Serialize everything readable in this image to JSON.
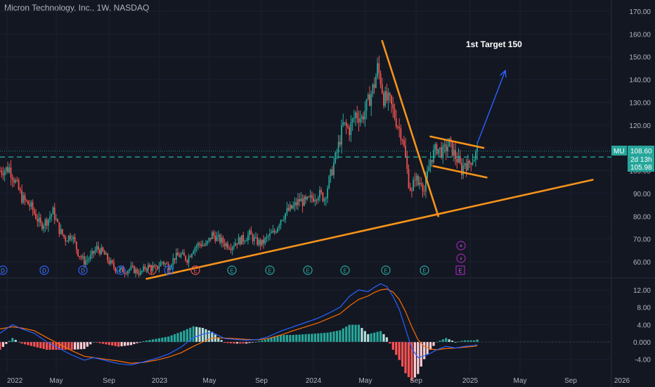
{
  "header": {
    "title": "Micron Technology, Inc., 1W, NASDAQ"
  },
  "annotation": {
    "target_text": "1st Target 150"
  },
  "price_badges": {
    "symbol": "MU",
    "last_price": "108.60",
    "countdown": "2d 13h",
    "level_price": "105.98"
  },
  "event_markers": {
    "dividend": "D",
    "earnings": "E",
    "lightning": "⚡",
    "plus": "+"
  },
  "colors": {
    "background": "#131722",
    "up": "#26a69a",
    "down": "#ef5350",
    "trendline": "#f7931a",
    "arrow": "#2962ff",
    "dashed_level": "#26a69a",
    "macd_line": "#2962ff",
    "signal_line": "#ff6d00"
  },
  "chart_data": [
    {
      "type": "candlestick",
      "title": "Micron Technology, Inc., 1W, NASDAQ",
      "ylim": [
        52,
        172
      ],
      "y_ticks": [
        "60.00",
        "70.00",
        "80.00",
        "90.00",
        "100.00",
        "110.00",
        "120.00",
        "130.00",
        "140.00",
        "150.00",
        "160.00",
        "170.00"
      ],
      "x_ticks": [
        "2022",
        "May",
        "Sep",
        "2023",
        "May",
        "Sep",
        "2024",
        "May",
        "Sep",
        "2025",
        "May",
        "Sep",
        "2026"
      ],
      "price_path": [
        [
          0,
          100
        ],
        [
          6,
          101
        ],
        [
          10,
          95
        ],
        [
          14,
          88
        ],
        [
          20,
          84
        ],
        [
          26,
          76
        ],
        [
          30,
          78
        ],
        [
          34,
          82
        ],
        [
          38,
          74
        ],
        [
          42,
          70
        ],
        [
          46,
          72
        ],
        [
          50,
          64
        ],
        [
          54,
          60
        ],
        [
          58,
          62
        ],
        [
          62,
          66
        ],
        [
          66,
          64
        ],
        [
          70,
          60
        ],
        [
          74,
          57
        ],
        [
          80,
          56
        ],
        [
          84,
          57
        ],
        [
          90,
          55
        ],
        [
          94,
          58
        ],
        [
          100,
          57
        ],
        [
          104,
          60
        ],
        [
          108,
          58
        ],
        [
          112,
          62
        ],
        [
          116,
          63
        ],
        [
          120,
          61
        ],
        [
          124,
          66
        ],
        [
          128,
          68
        ],
        [
          132,
          67
        ],
        [
          136,
          72
        ],
        [
          140,
          70
        ],
        [
          144,
          68
        ],
        [
          148,
          67
        ],
        [
          152,
          69
        ],
        [
          156,
          70
        ],
        [
          160,
          72
        ],
        [
          164,
          69
        ],
        [
          168,
          68
        ],
        [
          172,
          71
        ],
        [
          176,
          73
        ],
        [
          180,
          79
        ],
        [
          184,
          82
        ],
        [
          188,
          84
        ],
        [
          192,
          87
        ],
        [
          196,
          86
        ],
        [
          200,
          88
        ],
        [
          204,
          90
        ],
        [
          208,
          88
        ],
        [
          212,
          98
        ],
        [
          216,
          108
        ],
        [
          220,
          120
        ],
        [
          224,
          118
        ],
        [
          228,
          125
        ],
        [
          232,
          123
        ],
        [
          236,
          130
        ],
        [
          240,
          138
        ],
        [
          242,
          145
        ],
        [
          244,
          140
        ],
        [
          246,
          132
        ],
        [
          250,
          130
        ],
        [
          254,
          122
        ],
        [
          258,
          115
        ],
        [
          260,
          105
        ],
        [
          262,
          95
        ],
        [
          264,
          90
        ],
        [
          266,
          98
        ],
        [
          268,
          94
        ],
        [
          270,
          96
        ],
        [
          272,
          91
        ],
        [
          276,
          105
        ],
        [
          280,
          110
        ],
        [
          284,
          108
        ],
        [
          288,
          112
        ],
        [
          292,
          106
        ],
        [
          294,
          104
        ],
        [
          296,
          100
        ],
        [
          298,
          104
        ],
        [
          300,
          102
        ],
        [
          302,
          105
        ],
        [
          304,
          106
        ],
        [
          306,
          108.6
        ]
      ],
      "trendlines": [
        {
          "from": [
            94,
            52.5
          ],
          "to": [
            380,
            96
          ]
        },
        {
          "from": [
            245,
            157
          ],
          "to": [
            281,
            80
          ]
        },
        {
          "from": [
            276,
            115
          ],
          "to": [
            310,
            110
          ]
        },
        {
          "from": [
            278,
            102
          ],
          "to": [
            312,
            97
          ]
        }
      ],
      "arrow": {
        "from": [
          306,
          112
        ],
        "to": [
          324,
          144
        ]
      },
      "annotation_text": "1st Target 150",
      "annotation_value": 150,
      "last_price": 108.6,
      "horizontal_level": 105.98
    },
    {
      "type": "macd",
      "ylim": [
        -6,
        14
      ],
      "y_ticks": [
        "-4.00",
        "0.000",
        "4.00",
        "8.00",
        "12.00"
      ],
      "macd": [
        [
          0,
          2.0
        ],
        [
          8,
          4.0
        ],
        [
          14,
          3.0
        ],
        [
          22,
          2.0
        ],
        [
          30,
          0.0
        ],
        [
          38,
          -1.5
        ],
        [
          46,
          -3.0
        ],
        [
          54,
          -4.2
        ],
        [
          60,
          -3.6
        ],
        [
          68,
          -4.3
        ],
        [
          76,
          -5.0
        ],
        [
          84,
          -5.3
        ],
        [
          92,
          -4.6
        ],
        [
          100,
          -3.8
        ],
        [
          108,
          -2.8
        ],
        [
          116,
          -1.2
        ],
        [
          124,
          1.0
        ],
        [
          130,
          1.8
        ],
        [
          136,
          2.2
        ],
        [
          144,
          0.8
        ],
        [
          150,
          0.6
        ],
        [
          158,
          0.4
        ],
        [
          166,
          0.6
        ],
        [
          172,
          1.2
        ],
        [
          180,
          2.5
        ],
        [
          188,
          3.5
        ],
        [
          196,
          4.5
        ],
        [
          204,
          5.5
        ],
        [
          210,
          6.5
        ],
        [
          218,
          8.0
        ],
        [
          224,
          10.5
        ],
        [
          230,
          12.0
        ],
        [
          236,
          11.6
        ],
        [
          240,
          12.6
        ],
        [
          244,
          13.4
        ],
        [
          248,
          12.8
        ],
        [
          252,
          10.5
        ],
        [
          256,
          7.5
        ],
        [
          260,
          3.0
        ],
        [
          264,
          -1.5
        ],
        [
          268,
          -3.6
        ],
        [
          272,
          -3.2
        ],
        [
          276,
          -2.6
        ],
        [
          280,
          -1.8
        ],
        [
          286,
          -1.0
        ],
        [
          292,
          -1.4
        ],
        [
          298,
          -1.0
        ],
        [
          304,
          -0.8
        ],
        [
          306,
          -0.6
        ]
      ],
      "signal": [
        [
          0,
          3.0
        ],
        [
          8,
          3.5
        ],
        [
          14,
          3.2
        ],
        [
          22,
          2.6
        ],
        [
          30,
          1.0
        ],
        [
          38,
          -0.5
        ],
        [
          46,
          -2.0
        ],
        [
          54,
          -3.3
        ],
        [
          60,
          -3.6
        ],
        [
          68,
          -4.0
        ],
        [
          76,
          -4.4
        ],
        [
          84,
          -4.9
        ],
        [
          92,
          -4.7
        ],
        [
          100,
          -4.2
        ],
        [
          108,
          -3.5
        ],
        [
          116,
          -2.5
        ],
        [
          124,
          -1.0
        ],
        [
          130,
          0.0
        ],
        [
          136,
          0.9
        ],
        [
          144,
          0.9
        ],
        [
          150,
          0.8
        ],
        [
          158,
          0.6
        ],
        [
          166,
          0.5
        ],
        [
          172,
          0.8
        ],
        [
          180,
          1.6
        ],
        [
          188,
          2.6
        ],
        [
          196,
          3.5
        ],
        [
          204,
          4.4
        ],
        [
          210,
          5.3
        ],
        [
          218,
          6.5
        ],
        [
          224,
          8.3
        ],
        [
          230,
          9.8
        ],
        [
          236,
          10.6
        ],
        [
          240,
          11.4
        ],
        [
          244,
          12.0
        ],
        [
          248,
          12.2
        ],
        [
          252,
          11.5
        ],
        [
          256,
          9.8
        ],
        [
          260,
          7.0
        ],
        [
          264,
          3.5
        ],
        [
          268,
          0.5
        ],
        [
          272,
          -1.0
        ],
        [
          276,
          -1.6
        ],
        [
          280,
          -1.8
        ],
        [
          286,
          -1.5
        ],
        [
          292,
          -1.4
        ],
        [
          298,
          -1.2
        ],
        [
          304,
          -1.0
        ],
        [
          306,
          -0.9
        ]
      ]
    }
  ]
}
